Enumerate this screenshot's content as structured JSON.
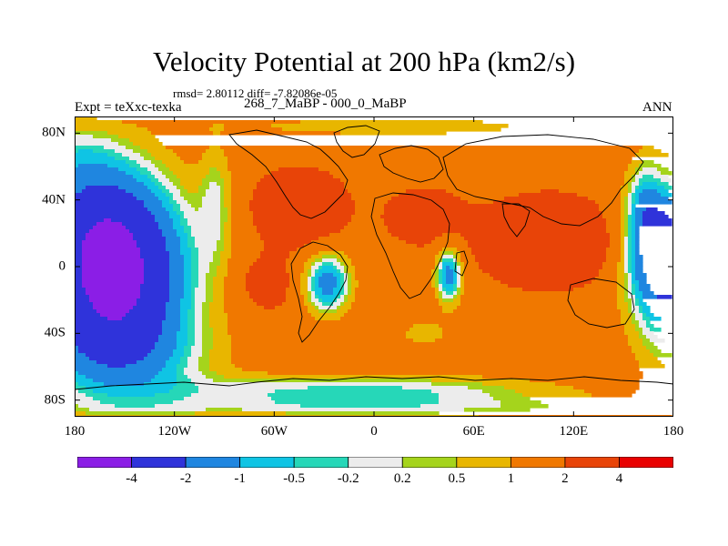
{
  "title": "Velocity Potential at 200 hPa (km2/s)",
  "stats": "rmsd= 2.80112 diff= -7.82086e-05",
  "expt": "Expt = teXxc-texka",
  "period": "268_7_MaBP - 000_0_MaBP",
  "season": "ANN",
  "map": {
    "lat_range": [
      -90,
      90
    ],
    "lon_range": [
      -180,
      180
    ],
    "y_ticks": [
      {
        "value": 80,
        "label": "80N"
      },
      {
        "value": 40,
        "label": "40N"
      },
      {
        "value": 0,
        "label": "0"
      },
      {
        "value": -40,
        "label": "40S"
      },
      {
        "value": -80,
        "label": "80S"
      }
    ],
    "x_ticks": [
      {
        "value": -180,
        "label": "180"
      },
      {
        "value": -120,
        "label": "120W"
      },
      {
        "value": -60,
        "label": "60W"
      },
      {
        "value": 0,
        "label": "0"
      },
      {
        "value": 60,
        "label": "60E"
      },
      {
        "value": 120,
        "label": "120E"
      },
      {
        "value": 180,
        "label": "180"
      }
    ]
  },
  "colorbar": {
    "levels": [
      "-4",
      "-2",
      "-1",
      "-0.5",
      "-0.2",
      "0.2",
      "0.5",
      "1",
      "2",
      "4"
    ],
    "colors": [
      "#8b1ee6",
      "#2f33da",
      "#1f86e0",
      "#0fc4e4",
      "#26d7b8",
      "#ececec",
      "#a5d41c",
      "#e8b600",
      "#f07800",
      "#e84408",
      "#e80000"
    ]
  },
  "field": {
    "background_value": 1.6,
    "blobs": [
      {
        "lon": -157,
        "lat": -5,
        "rlon": 44,
        "rlat": 52,
        "amp": -6.5
      },
      {
        "lon": -168,
        "lat": 38,
        "rlon": 38,
        "rlat": 30,
        "amp": -1.5
      },
      {
        "lon": -150,
        "lat": -55,
        "rlon": 55,
        "rlat": 25,
        "amp": -1.5
      },
      {
        "lon": -185,
        "lat": 70,
        "rlon": 35,
        "rlat": 18,
        "amp": -1.0
      },
      {
        "lon": 172,
        "lat": 10,
        "rlon": 20,
        "rlat": 40,
        "amp": -4.0
      },
      {
        "lon": 185,
        "lat": -25,
        "rlon": 28,
        "rlat": 55,
        "amp": -1.5
      },
      {
        "lon": -28,
        "lat": -10,
        "rlon": 14,
        "rlat": 18,
        "amp": -3.0
      },
      {
        "lon": 45,
        "lat": -5,
        "rlon": 8,
        "rlat": 17,
        "amp": -3.0
      },
      {
        "lon": -45,
        "lat": 35,
        "rlon": 25,
        "rlat": 20,
        "amp": 2.0
      },
      {
        "lon": 105,
        "lat": 15,
        "rlon": 38,
        "rlat": 24,
        "amp": 2.0
      },
      {
        "lon": -65,
        "lat": -10,
        "rlon": 18,
        "rlat": 18,
        "amp": 1.0
      },
      {
        "lon": 30,
        "lat": 30,
        "rlon": 25,
        "rlat": 18,
        "amp": 1.0
      },
      {
        "lon": -10,
        "lat": -75,
        "rlon": 120,
        "rlat": 10,
        "amp": -2.0
      },
      {
        "lon": 0,
        "lat": -85,
        "rlon": 200,
        "rlat": 6,
        "amp": -1.0
      },
      {
        "lon": 10,
        "lat": 84,
        "rlon": 100,
        "rlat": 6,
        "amp": -1.0
      },
      {
        "lon": -95,
        "lat": 40,
        "rlon": 10,
        "rlat": 35,
        "amp": -1.2
      },
      {
        "lon": 162,
        "lat": 35,
        "rlon": 10,
        "rlat": 30,
        "amp": -1.2
      },
      {
        "lon": 30,
        "lat": -40,
        "rlon": 20,
        "rlat": 10,
        "amp": -0.8
      }
    ]
  }
}
